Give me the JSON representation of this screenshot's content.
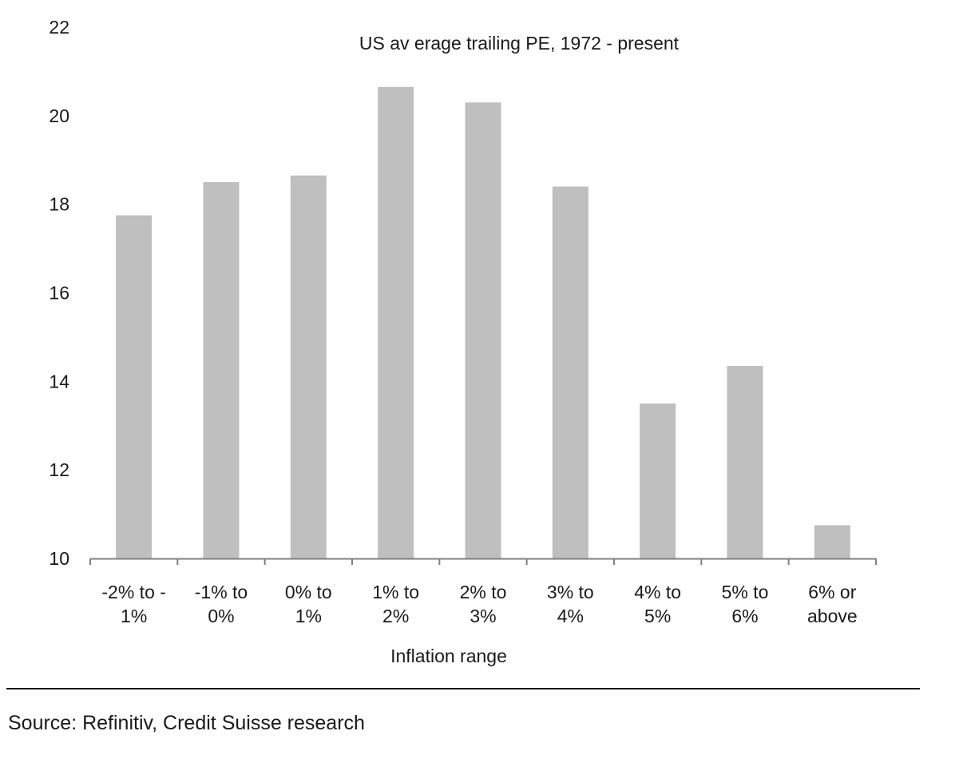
{
  "chart_data": {
    "type": "bar",
    "title": "US av erage trailing PE, 1972 - present",
    "xlabel": "Inflation range",
    "ylabel": "",
    "ylim": [
      10,
      22
    ],
    "yticks": [
      10,
      12,
      14,
      16,
      18,
      20,
      22
    ],
    "grid": false,
    "categories": [
      [
        "-2% to -",
        "1%"
      ],
      [
        "-1% to",
        "0%"
      ],
      [
        "0% to",
        "1%"
      ],
      [
        "1% to",
        "2%"
      ],
      [
        "2% to",
        "3%"
      ],
      [
        "3% to",
        "4%"
      ],
      [
        "4% to",
        "5%"
      ],
      [
        "5% to",
        "6%"
      ],
      [
        "6% or",
        "above"
      ]
    ],
    "values": [
      17.75,
      18.5,
      18.65,
      20.65,
      20.3,
      18.4,
      13.5,
      14.35,
      10.75
    ],
    "bar_color": "#bfbfbf",
    "axis_color": "#808080"
  },
  "footer": {
    "source": "Source: Refinitiv, Credit Suisse research"
  }
}
